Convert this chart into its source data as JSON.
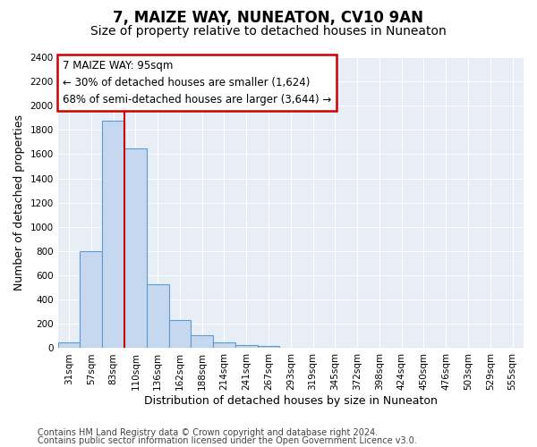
{
  "title": "7, MAIZE WAY, NUNEATON, CV10 9AN",
  "subtitle": "Size of property relative to detached houses in Nuneaton",
  "xlabel": "Distribution of detached houses by size in Nuneaton",
  "ylabel": "Number of detached properties",
  "categories": [
    "31sqm",
    "57sqm",
    "83sqm",
    "110sqm",
    "136sqm",
    "162sqm",
    "188sqm",
    "214sqm",
    "241sqm",
    "267sqm",
    "293sqm",
    "319sqm",
    "345sqm",
    "372sqm",
    "398sqm",
    "424sqm",
    "450sqm",
    "476sqm",
    "503sqm",
    "529sqm",
    "555sqm"
  ],
  "values": [
    50,
    800,
    1880,
    1650,
    530,
    235,
    105,
    48,
    28,
    18,
    0,
    0,
    0,
    0,
    0,
    0,
    0,
    0,
    0,
    0,
    0
  ],
  "bar_color": "#c5d8f0",
  "bar_edge_color": "#5b9bd5",
  "ref_line_color": "#cc0000",
  "ref_line_x": 2.5,
  "annotation_line1": "7 MAIZE WAY: 95sqm",
  "annotation_line2": "← 30% of detached houses are smaller (1,624)",
  "annotation_line3": "68% of semi-detached houses are larger (3,644) →",
  "annotation_edge_color": "#cc0000",
  "annotation_bg": "#ffffff",
  "ylim": [
    0,
    2400
  ],
  "yticks": [
    0,
    200,
    400,
    600,
    800,
    1000,
    1200,
    1400,
    1600,
    1800,
    2000,
    2200,
    2400
  ],
  "bg_color": "#ffffff",
  "plot_bg_color": "#e8eef5",
  "grid_color": "#ffffff",
  "title_fontsize": 12,
  "subtitle_fontsize": 10,
  "annotation_fontsize": 8.5,
  "tick_fontsize": 7.5,
  "ylabel_fontsize": 9,
  "xlabel_fontsize": 9,
  "footer_line1": "Contains HM Land Registry data © Crown copyright and database right 2024.",
  "footer_line2": "Contains public sector information licensed under the Open Government Licence v3.0.",
  "footer_fontsize": 7
}
